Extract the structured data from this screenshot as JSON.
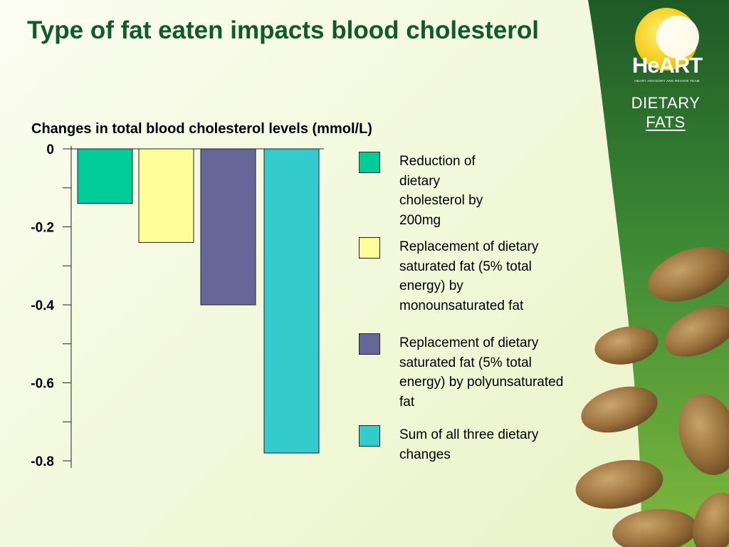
{
  "slide": {
    "title": "Type of fat eaten impacts blood cholesterol",
    "brand": {
      "logo_text": "HeART",
      "logo_subtitle": "HEART ADVISORY AND REVIEW TEAM",
      "line1": "DIETARY",
      "line2": "FATS"
    },
    "colors": {
      "title": "#0f5a2a",
      "panel_green": "#2f7a32",
      "panel_dark": "#1e5a26"
    }
  },
  "chart_data": {
    "type": "bar",
    "title": "Changes in total blood cholesterol levels (mmol/L)",
    "xlabel": "",
    "ylabel": "",
    "ylim": [
      -0.8,
      0
    ],
    "yticks": [
      0,
      -0.2,
      -0.4,
      -0.6,
      -0.8
    ],
    "ytick_labels": [
      "0",
      "-0.2",
      "-0.4",
      "-0.6",
      "-0.8"
    ],
    "minor_ticks": [
      -0.1,
      -0.3,
      -0.5,
      -0.7
    ],
    "grid": false,
    "legend_position": "right",
    "series": [
      {
        "name": "Reduction of dietary cholesterol by 200mg",
        "value": -0.14,
        "color": "#00cc99"
      },
      {
        "name": "Replacement of dietary saturated fat (5% total energy) by monounsaturated fat",
        "value": -0.24,
        "color": "#ffff99"
      },
      {
        "name": "Replacement of dietary saturated fat (5% total energy) by polyunsaturated fat",
        "value": -0.4,
        "color": "#666699"
      },
      {
        "name": "Sum of all three dietary changes",
        "value": -0.78,
        "color": "#33cccc"
      }
    ]
  }
}
